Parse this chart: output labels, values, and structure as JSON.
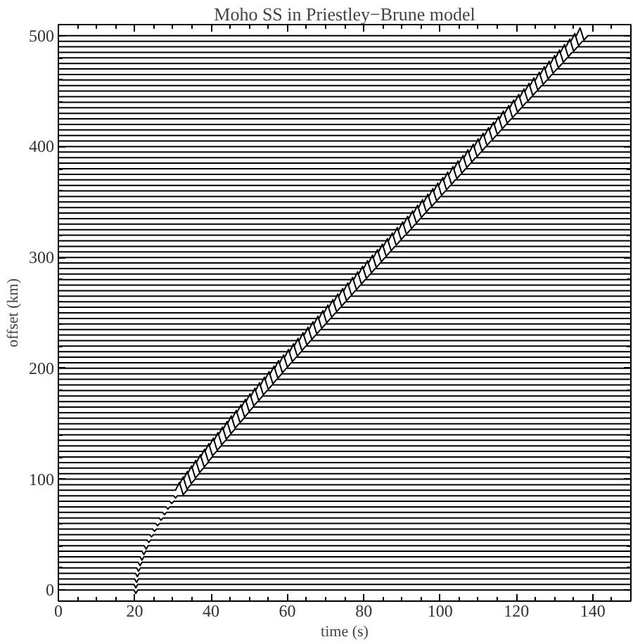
{
  "chart_data": {
    "type": "line",
    "title": "Moho SS in Priestley−Brune model",
    "xlabel": "time (s)",
    "ylabel": "offset (km)",
    "color": "#000000",
    "xlim": [
      0,
      150
    ],
    "ylim": [
      -10,
      510
    ],
    "xticks": [
      0,
      {
        "value": 5,
        "label": null
      },
      {
        "value": 10,
        "label": null
      },
      {
        "value": 15,
        "label": null
      },
      20,
      {
        "value": 25,
        "label": null
      },
      {
        "value": 30,
        "label": null
      },
      {
        "value": 35,
        "label": null
      },
      40,
      {
        "value": 45,
        "label": null
      },
      {
        "value": 50,
        "label": null
      },
      {
        "value": 55,
        "label": null
      },
      60,
      {
        "value": 65,
        "label": null
      },
      {
        "value": 70,
        "label": null
      },
      {
        "value": 75,
        "label": null
      },
      80,
      {
        "value": 85,
        "label": null
      },
      {
        "value": 90,
        "label": null
      },
      {
        "value": 95,
        "label": null
      },
      100,
      {
        "value": 105,
        "label": null
      },
      {
        "value": 110,
        "label": null
      },
      {
        "value": 115,
        "label": null
      },
      120,
      {
        "value": 125,
        "label": null
      },
      {
        "value": 130,
        "label": null
      },
      {
        "value": 135,
        "label": null
      },
      140,
      {
        "value": 145,
        "label": null
      }
    ],
    "yticks": [
      0,
      {
        "value": 20,
        "label": null
      },
      {
        "value": 40,
        "label": null
      },
      {
        "value": 60,
        "label": null
      },
      {
        "value": 80,
        "label": null
      },
      100,
      {
        "value": 120,
        "label": null
      },
      {
        "value": 140,
        "label": null
      },
      {
        "value": 160,
        "label": null
      },
      {
        "value": 180,
        "label": null
      },
      200,
      {
        "value": 220,
        "label": null
      },
      {
        "value": 240,
        "label": null
      },
      {
        "value": 260,
        "label": null
      },
      {
        "value": 280,
        "label": null
      },
      300,
      {
        "value": 320,
        "label": null
      },
      {
        "value": 340,
        "label": null
      },
      {
        "value": 360,
        "label": null
      },
      {
        "value": 380,
        "label": null
      },
      400,
      {
        "value": 420,
        "label": null
      },
      {
        "value": 440,
        "label": null
      },
      {
        "value": 460,
        "label": null
      },
      {
        "value": 480,
        "label": null
      },
      500
    ],
    "series": [
      {
        "x": [
          0,
          19.8,
          20.3,
          20.8,
          150
        ],
        "values": [
          0,
          0,
          -3,
          0,
          0
        ]
      },
      {
        "x": [
          0,
          19.8,
          20.3,
          20.8,
          150
        ],
        "values": [
          5,
          5,
          2,
          5,
          5
        ]
      },
      {
        "x": [
          0,
          20,
          20.5,
          21,
          150
        ],
        "values": [
          10,
          10,
          7,
          10,
          10
        ]
      },
      {
        "x": [
          0,
          20.2,
          20.7,
          21.2,
          150
        ],
        "values": [
          15,
          15,
          12,
          15,
          15
        ]
      },
      {
        "x": [
          0,
          20.5,
          21,
          21.5,
          150
        ],
        "values": [
          20,
          20,
          17,
          20,
          20
        ]
      },
      {
        "x": [
          0,
          20.9,
          21.4,
          21.9,
          150
        ],
        "values": [
          25,
          25,
          22,
          25,
          25
        ]
      },
      {
        "x": [
          0,
          21.4,
          21.9,
          22.4,
          150
        ],
        "values": [
          30,
          30,
          27,
          30,
          30
        ]
      },
      {
        "x": [
          0,
          21.9,
          22.4,
          22.9,
          150
        ],
        "values": [
          35,
          35,
          32,
          35,
          35
        ]
      },
      {
        "x": [
          0,
          22.5,
          23,
          23.5,
          150
        ],
        "values": [
          40,
          40,
          37,
          40,
          40
        ]
      },
      {
        "x": [
          0,
          23.2,
          23.7,
          24.2,
          150
        ],
        "values": [
          45,
          45,
          43,
          45,
          45
        ]
      },
      {
        "x": [
          0,
          23.9,
          24.4,
          24.9,
          150
        ],
        "values": [
          50,
          50,
          48,
          50,
          50
        ]
      },
      {
        "x": [
          0,
          24.7,
          25.2,
          25.7,
          150
        ],
        "values": [
          55,
          55,
          53,
          55,
          55
        ]
      },
      {
        "x": [
          0,
          25.5,
          26,
          26.5,
          150
        ],
        "values": [
          60,
          60,
          58,
          60,
          60
        ]
      },
      {
        "x": [
          0,
          26.4,
          26.9,
          27.4,
          150
        ],
        "values": [
          65,
          65,
          63,
          65,
          65
        ]
      },
      {
        "x": [
          0,
          27.3,
          27.8,
          28.3,
          150
        ],
        "values": [
          70,
          70,
          68,
          70,
          70
        ]
      },
      {
        "x": [
          0,
          28.2,
          28.7,
          29.2,
          150
        ],
        "values": [
          75,
          75,
          73,
          75,
          75
        ]
      },
      {
        "x": [
          0,
          29.2,
          29.7,
          30.2,
          150
        ],
        "values": [
          80,
          80,
          78,
          80,
          80
        ]
      },
      {
        "x": [
          0,
          30.2,
          30.7,
          31.2,
          150
        ],
        "values": [
          85,
          85,
          83,
          85,
          85
        ]
      },
      {
        "x": [
          0,
          30.7,
          31.7,
          32.7,
          33.7,
          150
        ],
        "values": [
          90,
          90,
          97,
          86,
          90,
          90
        ]
      },
      {
        "x": [
          0,
          31.7,
          32.7,
          33.7,
          34.7,
          150
        ],
        "values": [
          95,
          95,
          102,
          91,
          95,
          95
        ]
      },
      {
        "x": [
          0,
          32.8,
          33.8,
          34.8,
          35.8,
          150
        ],
        "values": [
          100,
          100,
          107,
          96,
          100,
          100
        ]
      },
      {
        "x": [
          0,
          33.9,
          34.9,
          35.9,
          36.9,
          150
        ],
        "values": [
          105,
          105,
          112,
          101,
          105,
          105
        ]
      },
      {
        "x": [
          0,
          35,
          36,
          37,
          38,
          150
        ],
        "values": [
          110,
          110,
          117,
          106,
          110,
          110
        ]
      },
      {
        "x": [
          0,
          36.2,
          37.2,
          38.2,
          39.2,
          150
        ],
        "values": [
          115,
          115,
          122,
          111,
          115,
          115
        ]
      },
      {
        "x": [
          0,
          37.3,
          38.3,
          39.3,
          40.3,
          150
        ],
        "values": [
          120,
          120,
          127,
          116,
          120,
          120
        ]
      },
      {
        "x": [
          0,
          38.4,
          39.4,
          40.4,
          41.4,
          150
        ],
        "values": [
          125,
          125,
          132,
          121,
          125,
          125
        ]
      },
      {
        "x": [
          0,
          39.6,
          40.6,
          41.6,
          42.6,
          150
        ],
        "values": [
          130,
          130,
          137,
          126,
          130,
          130
        ]
      },
      {
        "x": [
          0,
          40.8,
          41.8,
          42.8,
          43.8,
          150
        ],
        "values": [
          135,
          135,
          142,
          131,
          135,
          135
        ]
      },
      {
        "x": [
          0,
          42,
          43,
          44,
          45,
          150
        ],
        "values": [
          140,
          140,
          147,
          136,
          140,
          140
        ]
      },
      {
        "x": [
          0,
          43.2,
          44.2,
          45.2,
          46.2,
          150
        ],
        "values": [
          145,
          145,
          152,
          141,
          145,
          145
        ]
      },
      {
        "x": [
          0,
          44.3,
          45.3,
          46.3,
          47.3,
          150
        ],
        "values": [
          150,
          150,
          157,
          146,
          150,
          150
        ]
      },
      {
        "x": [
          0,
          45.6,
          46.6,
          47.6,
          48.6,
          150
        ],
        "values": [
          155,
          155,
          162,
          151,
          155,
          155
        ]
      },
      {
        "x": [
          0,
          46.8,
          47.8,
          48.8,
          49.8,
          150
        ],
        "values": [
          160,
          160,
          167,
          156,
          160,
          160
        ]
      },
      {
        "x": [
          0,
          48,
          49,
          50,
          51,
          150
        ],
        "values": [
          165,
          165,
          172,
          161,
          165,
          165
        ]
      },
      {
        "x": [
          0,
          49.2,
          50.2,
          51.2,
          52.2,
          150
        ],
        "values": [
          170,
          170,
          177,
          166,
          170,
          170
        ]
      },
      {
        "x": [
          0,
          50.5,
          51.5,
          52.5,
          53.5,
          150
        ],
        "values": [
          175,
          175,
          182,
          171,
          175,
          175
        ]
      },
      {
        "x": [
          0,
          51.7,
          52.7,
          53.7,
          54.7,
          150
        ],
        "values": [
          180,
          180,
          187,
          176,
          180,
          180
        ]
      },
      {
        "x": [
          0,
          53,
          54,
          55,
          56,
          150
        ],
        "values": [
          185,
          185,
          192,
          181,
          185,
          185
        ]
      },
      {
        "x": [
          0,
          54.2,
          55.2,
          56.2,
          57.2,
          150
        ],
        "values": [
          190,
          190,
          197,
          186,
          190,
          190
        ]
      },
      {
        "x": [
          0,
          55.5,
          56.5,
          57.5,
          58.5,
          150
        ],
        "values": [
          195,
          195,
          202,
          191,
          195,
          195
        ]
      },
      {
        "x": [
          0,
          56.7,
          57.7,
          58.7,
          59.7,
          150
        ],
        "values": [
          200,
          200,
          207,
          196,
          200,
          200
        ]
      },
      {
        "x": [
          0,
          58,
          59,
          60,
          61,
          150
        ],
        "values": [
          205,
          205,
          212,
          201,
          205,
          205
        ]
      },
      {
        "x": [
          0,
          59.3,
          60.3,
          61.3,
          62.3,
          150
        ],
        "values": [
          210,
          210,
          217,
          206,
          210,
          210
        ]
      },
      {
        "x": [
          0,
          60.6,
          61.6,
          62.6,
          63.6,
          150
        ],
        "values": [
          215,
          215,
          222,
          211,
          215,
          215
        ]
      },
      {
        "x": [
          0,
          61.8,
          62.8,
          63.8,
          64.8,
          150
        ],
        "values": [
          220,
          220,
          227,
          216,
          220,
          220
        ]
      },
      {
        "x": [
          0,
          63.1,
          64.1,
          65.1,
          66.1,
          150
        ],
        "values": [
          225,
          225,
          232,
          221,
          225,
          225
        ]
      },
      {
        "x": [
          0,
          64.4,
          65.4,
          66.4,
          67.4,
          150
        ],
        "values": [
          230,
          230,
          237,
          226,
          230,
          230
        ]
      },
      {
        "x": [
          0,
          65.7,
          66.7,
          67.7,
          68.7,
          150
        ],
        "values": [
          235,
          235,
          242,
          231,
          235,
          235
        ]
      },
      {
        "x": [
          0,
          67,
          68,
          69,
          70,
          150
        ],
        "values": [
          240,
          240,
          247,
          236,
          240,
          240
        ]
      },
      {
        "x": [
          0,
          68.3,
          69.3,
          70.3,
          71.3,
          150
        ],
        "values": [
          245,
          245,
          252,
          241,
          245,
          245
        ]
      },
      {
        "x": [
          0,
          69.6,
          70.6,
          71.6,
          72.6,
          150
        ],
        "values": [
          250,
          250,
          257,
          246,
          250,
          250
        ]
      },
      {
        "x": [
          0,
          70.9,
          71.9,
          72.9,
          73.9,
          150
        ],
        "values": [
          255,
          255,
          262,
          251,
          255,
          255
        ]
      },
      {
        "x": [
          0,
          72.2,
          73.2,
          74.2,
          75.2,
          150
        ],
        "values": [
          260,
          260,
          267,
          256,
          260,
          260
        ]
      },
      {
        "x": [
          0,
          73.5,
          74.5,
          75.5,
          76.5,
          150
        ],
        "values": [
          265,
          265,
          272,
          261,
          265,
          265
        ]
      },
      {
        "x": [
          0,
          74.8,
          75.8,
          76.8,
          77.8,
          150
        ],
        "values": [
          270,
          270,
          277,
          266,
          270,
          270
        ]
      },
      {
        "x": [
          0,
          76.1,
          77.1,
          78.1,
          79.1,
          150
        ],
        "values": [
          275,
          275,
          282,
          271,
          275,
          275
        ]
      },
      {
        "x": [
          0,
          77.4,
          78.4,
          79.4,
          80.4,
          150
        ],
        "values": [
          280,
          280,
          287,
          276,
          280,
          280
        ]
      },
      {
        "x": [
          0,
          78.7,
          79.7,
          80.7,
          81.7,
          150
        ],
        "values": [
          285,
          285,
          292,
          281,
          285,
          285
        ]
      },
      {
        "x": [
          0,
          80,
          81,
          82,
          83,
          150
        ],
        "values": [
          290,
          290,
          297,
          286,
          290,
          290
        ]
      },
      {
        "x": [
          0,
          81.3,
          82.3,
          83.3,
          84.3,
          150
        ],
        "values": [
          295,
          295,
          302,
          291,
          295,
          295
        ]
      },
      {
        "x": [
          0,
          82.6,
          83.6,
          84.6,
          85.6,
          150
        ],
        "values": [
          300,
          300,
          307,
          296,
          300,
          300
        ]
      },
      {
        "x": [
          0,
          83.9,
          84.9,
          85.9,
          86.9,
          150
        ],
        "values": [
          305,
          305,
          312,
          301,
          305,
          305
        ]
      },
      {
        "x": [
          0,
          85.2,
          86.2,
          87.2,
          88.2,
          150
        ],
        "values": [
          310,
          310,
          317,
          306,
          310,
          310
        ]
      },
      {
        "x": [
          0,
          86.5,
          87.5,
          88.5,
          89.5,
          150
        ],
        "values": [
          315,
          315,
          322,
          311,
          315,
          315
        ]
      },
      {
        "x": [
          0,
          87.8,
          88.8,
          89.8,
          90.8,
          150
        ],
        "values": [
          320,
          320,
          327,
          316,
          320,
          320
        ]
      },
      {
        "x": [
          0,
          89.2,
          90.2,
          91.2,
          92.2,
          150
        ],
        "values": [
          325,
          325,
          332,
          321,
          325,
          325
        ]
      },
      {
        "x": [
          0,
          90.5,
          91.5,
          92.5,
          93.5,
          150
        ],
        "values": [
          330,
          330,
          337,
          326,
          330,
          330
        ]
      },
      {
        "x": [
          0,
          91.8,
          92.8,
          93.8,
          94.8,
          150
        ],
        "values": [
          335,
          335,
          342,
          331,
          335,
          335
        ]
      },
      {
        "x": [
          0,
          93.1,
          94.1,
          95.1,
          96.1,
          150
        ],
        "values": [
          340,
          340,
          347,
          336,
          340,
          340
        ]
      },
      {
        "x": [
          0,
          94.4,
          95.4,
          96.4,
          97.4,
          150
        ],
        "values": [
          345,
          345,
          352,
          341,
          345,
          345
        ]
      },
      {
        "x": [
          0,
          95.8,
          96.8,
          97.8,
          98.8,
          150
        ],
        "values": [
          350,
          350,
          357,
          346,
          350,
          350
        ]
      },
      {
        "x": [
          0,
          97.1,
          98.1,
          99.1,
          100.1,
          150
        ],
        "values": [
          355,
          355,
          362,
          351,
          355,
          355
        ]
      },
      {
        "x": [
          0,
          98.4,
          99.4,
          100.4,
          101.4,
          150
        ],
        "values": [
          360,
          360,
          367,
          356,
          360,
          360
        ]
      },
      {
        "x": [
          0,
          99.7,
          100.7,
          101.7,
          102.7,
          150
        ],
        "values": [
          365,
          365,
          372,
          361,
          365,
          365
        ]
      },
      {
        "x": [
          0,
          101,
          102,
          103,
          104,
          150
        ],
        "values": [
          370,
          370,
          377,
          366,
          370,
          370
        ]
      },
      {
        "x": [
          0,
          102.4,
          103.4,
          104.4,
          105.4,
          150
        ],
        "values": [
          375,
          375,
          382,
          371,
          375,
          375
        ]
      },
      {
        "x": [
          0,
          103.7,
          104.7,
          105.7,
          106.7,
          150
        ],
        "values": [
          380,
          380,
          387,
          376,
          380,
          380
        ]
      },
      {
        "x": [
          0,
          105,
          106,
          107,
          108,
          150
        ],
        "values": [
          385,
          385,
          392,
          381,
          385,
          385
        ]
      },
      {
        "x": [
          0,
          106.3,
          107.3,
          108.3,
          109.3,
          150
        ],
        "values": [
          390,
          390,
          397,
          386,
          390,
          390
        ]
      },
      {
        "x": [
          0,
          107.7,
          108.7,
          109.7,
          110.7,
          150
        ],
        "values": [
          395,
          395,
          402,
          391,
          395,
          395
        ]
      },
      {
        "x": [
          0,
          109,
          110,
          111,
          112,
          150
        ],
        "values": [
          400,
          400,
          407,
          396,
          400,
          400
        ]
      },
      {
        "x": [
          0,
          110.3,
          111.3,
          112.3,
          113.3,
          150
        ],
        "values": [
          405,
          405,
          412,
          401,
          405,
          405
        ]
      },
      {
        "x": [
          0,
          111.7,
          112.7,
          113.7,
          114.7,
          150
        ],
        "values": [
          410,
          410,
          417,
          406,
          410,
          410
        ]
      },
      {
        "x": [
          0,
          113,
          114,
          115,
          116,
          150
        ],
        "values": [
          415,
          415,
          422,
          411,
          415,
          415
        ]
      },
      {
        "x": [
          0,
          114.3,
          115.3,
          116.3,
          117.3,
          150
        ],
        "values": [
          420,
          420,
          427,
          416,
          420,
          420
        ]
      },
      {
        "x": [
          0,
          115.6,
          116.6,
          117.6,
          118.6,
          150
        ],
        "values": [
          425,
          425,
          432,
          421,
          425,
          425
        ]
      },
      {
        "x": [
          0,
          117,
          118,
          119,
          120,
          150
        ],
        "values": [
          430,
          430,
          437,
          426,
          430,
          430
        ]
      },
      {
        "x": [
          0,
          118.3,
          119.3,
          120.3,
          121.3,
          150
        ],
        "values": [
          435,
          435,
          442,
          431,
          435,
          435
        ]
      },
      {
        "x": [
          0,
          119.6,
          120.6,
          121.6,
          122.6,
          150
        ],
        "values": [
          440,
          440,
          447,
          436,
          440,
          440
        ]
      },
      {
        "x": [
          0,
          121,
          122,
          123,
          124,
          150
        ],
        "values": [
          445,
          445,
          452,
          441,
          445,
          445
        ]
      },
      {
        "x": [
          0,
          122.3,
          123.3,
          124.3,
          125.3,
          150
        ],
        "values": [
          450,
          450,
          457,
          446,
          450,
          450
        ]
      },
      {
        "x": [
          0,
          123.6,
          124.6,
          125.6,
          126.6,
          150
        ],
        "values": [
          455,
          455,
          462,
          451,
          455,
          455
        ]
      },
      {
        "x": [
          0,
          125,
          126,
          127,
          128,
          150
        ],
        "values": [
          460,
          460,
          467,
          456,
          460,
          460
        ]
      },
      {
        "x": [
          0,
          126.3,
          127.3,
          128.3,
          129.3,
          150
        ],
        "values": [
          465,
          465,
          472,
          461,
          465,
          465
        ]
      },
      {
        "x": [
          0,
          127.6,
          128.6,
          129.6,
          130.6,
          150
        ],
        "values": [
          470,
          470,
          477,
          466,
          470,
          470
        ]
      },
      {
        "x": [
          0,
          129,
          130,
          131,
          132,
          150
        ],
        "values": [
          475,
          475,
          482,
          471,
          475,
          475
        ]
      },
      {
        "x": [
          0,
          130.3,
          131.3,
          132.3,
          133.3,
          150
        ],
        "values": [
          480,
          480,
          487,
          476,
          480,
          480
        ]
      },
      {
        "x": [
          0,
          131.6,
          132.6,
          133.6,
          134.6,
          150
        ],
        "values": [
          485,
          485,
          492,
          481,
          485,
          485
        ]
      },
      {
        "x": [
          0,
          133,
          134,
          135,
          136,
          150
        ],
        "values": [
          490,
          490,
          497,
          486,
          490,
          490
        ]
      },
      {
        "x": [
          0,
          134.3,
          135.3,
          136.3,
          137.3,
          150
        ],
        "values": [
          495,
          495,
          502,
          491,
          495,
          495
        ]
      },
      {
        "x": [
          0,
          135.7,
          136.7,
          137.7,
          138.7,
          150
        ],
        "values": [
          500,
          500,
          507,
          496,
          500,
          500
        ]
      }
    ]
  }
}
